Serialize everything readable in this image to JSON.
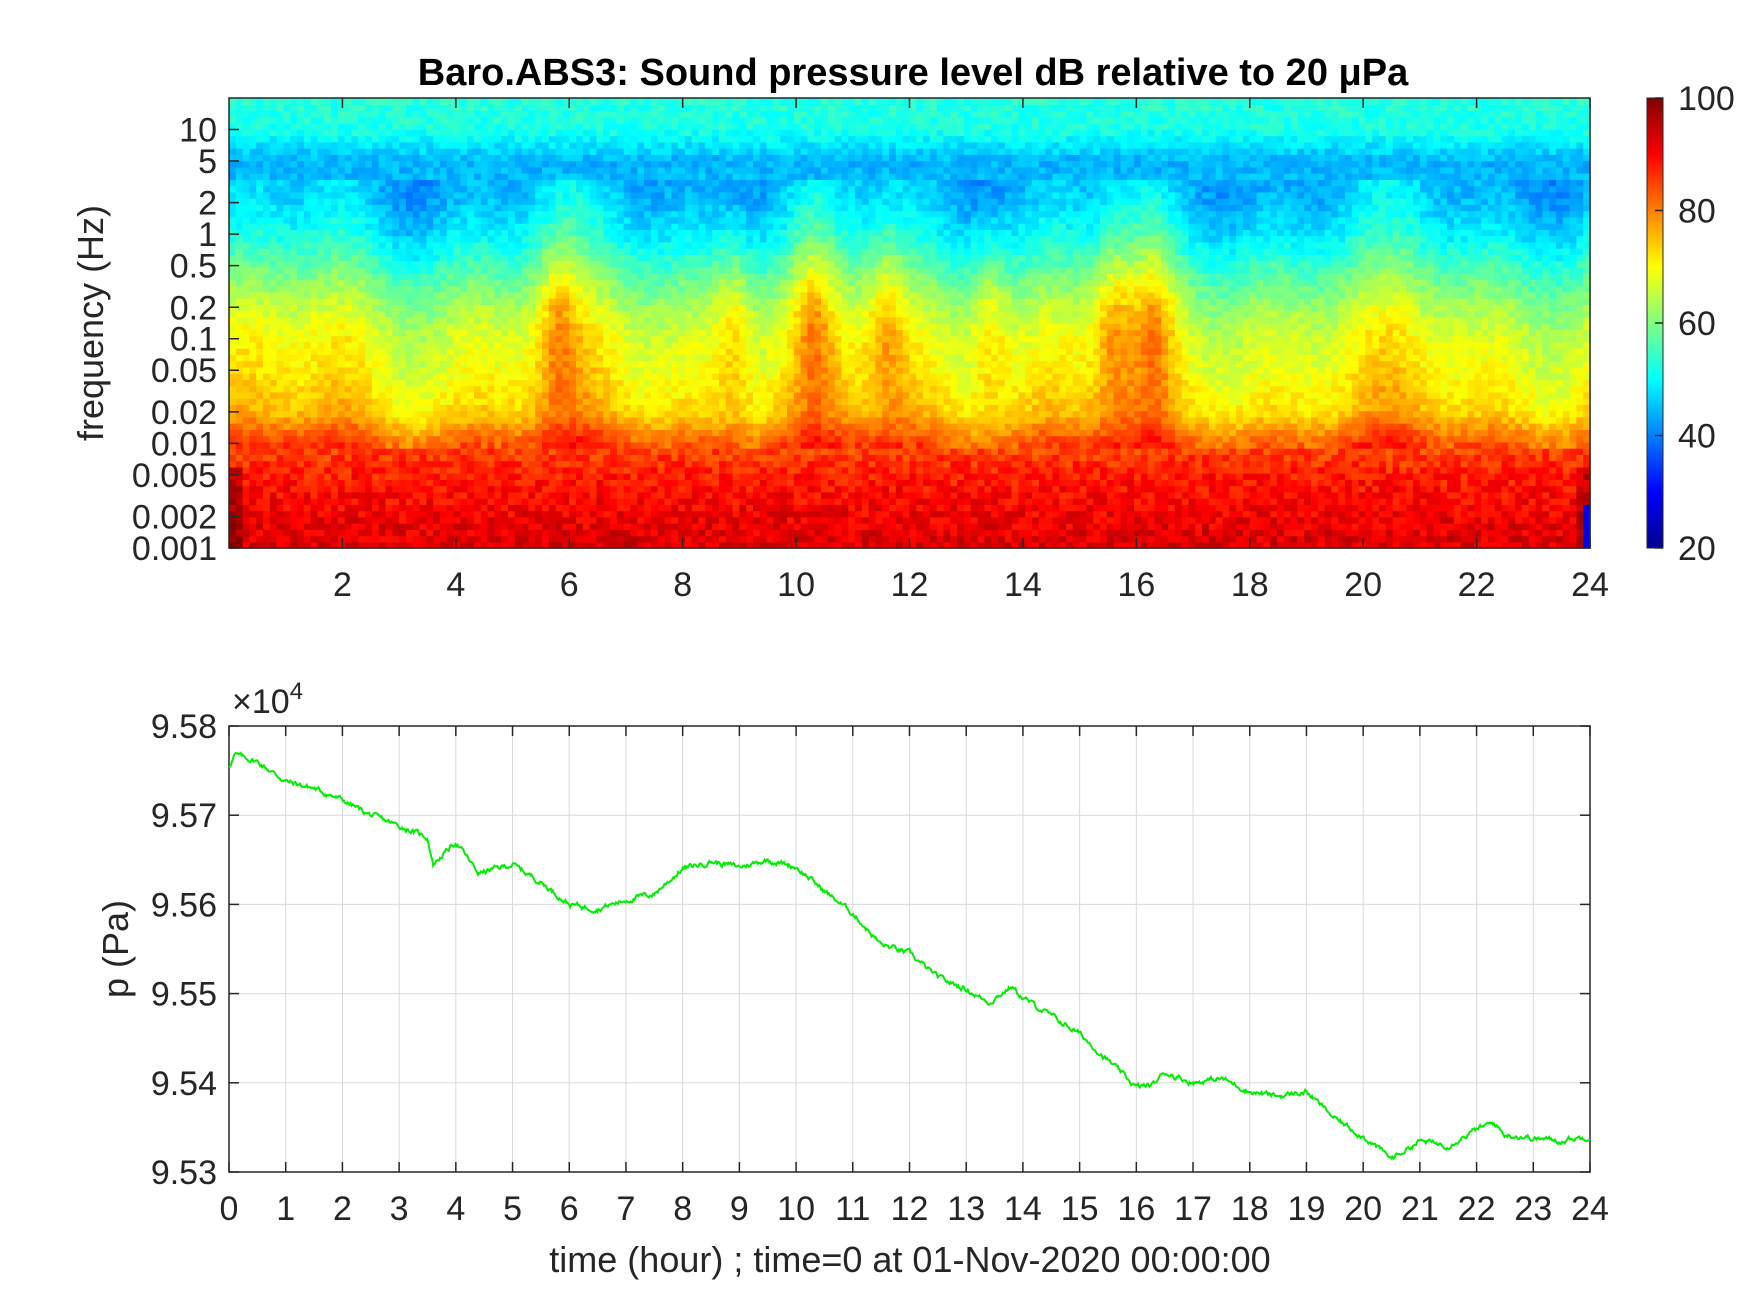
{
  "figure": {
    "title": "Baro.ABS3: Sound pressure level dB relative to 20 μPa"
  },
  "chart_data": [
    {
      "type": "heatmap",
      "title": "Baro.ABS3: Sound pressure level dB relative to 20 μPa",
      "ylabel": "frequency (Hz)",
      "xlabel": "",
      "xlim": [
        0,
        24
      ],
      "ylim": [
        0.001,
        20
      ],
      "yscale": "log",
      "xticks": [
        2,
        4,
        6,
        8,
        10,
        12,
        14,
        16,
        18,
        20,
        22,
        24
      ],
      "xtick_labels": [
        "2",
        "4",
        "6",
        "8",
        "10",
        "12",
        "14",
        "16",
        "18",
        "20",
        "22",
        "24"
      ],
      "yticks": [
        0.001,
        0.002,
        0.005,
        0.01,
        0.02,
        0.05,
        0.1,
        0.2,
        0.5,
        1,
        2,
        5,
        10
      ],
      "ytick_labels": [
        "0.001",
        "0.002",
        "0.005",
        "0.01",
        "0.02",
        "0.05",
        "0.1",
        "0.2",
        "0.5",
        "1",
        "2",
        "5",
        "10"
      ],
      "colormap": "jet",
      "colorbar": {
        "clim": [
          20,
          100
        ],
        "ticks": [
          20,
          40,
          60,
          80,
          100
        ],
        "tick_labels": [
          "20",
          "40",
          "60",
          "80",
          "100"
        ]
      },
      "z_profile_by_frequency": {
        "frequency": [
          0.001,
          0.002,
          0.005,
          0.01,
          0.02,
          0.05,
          0.1,
          0.2,
          0.5,
          1,
          2,
          5,
          10,
          20
        ],
        "level_db": [
          93,
          91,
          88,
          84,
          74,
          70,
          68,
          64,
          56,
          50,
          46,
          44,
          52,
          53
        ]
      },
      "high_activity_hours": [
        5.8,
        8.9,
        10.3,
        11.6,
        13.4,
        15.6,
        16.3
      ]
    },
    {
      "type": "line",
      "xlabel": "time (hour) ; time=0 at 01-Nov-2020 00:00:00",
      "ylabel": "p (Pa)",
      "y_multiplier": "×10",
      "y_multiplier_exp": "4",
      "xlim": [
        0,
        24
      ],
      "ylim": [
        9.53,
        9.58
      ],
      "xticks": [
        0,
        1,
        2,
        3,
        4,
        5,
        6,
        7,
        8,
        9,
        10,
        11,
        12,
        13,
        14,
        15,
        16,
        17,
        18,
        19,
        20,
        21,
        22,
        23,
        24
      ],
      "xtick_labels": [
        "0",
        "1",
        "2",
        "3",
        "4",
        "5",
        "6",
        "7",
        "8",
        "9",
        "10",
        "11",
        "12",
        "13",
        "14",
        "15",
        "16",
        "17",
        "18",
        "19",
        "20",
        "21",
        "22",
        "23",
        "24"
      ],
      "yticks": [
        9.53,
        9.54,
        9.55,
        9.56,
        9.57,
        9.58
      ],
      "ytick_labels": [
        "9.53",
        "9.54",
        "9.55",
        "9.56",
        "9.57",
        "9.58"
      ],
      "grid": true,
      "color": "#00ee00",
      "series": [
        {
          "x": [
            0,
            0.1,
            0.5,
            1,
            1.5,
            2,
            2.5,
            3,
            3.5,
            3.6,
            4,
            4.4,
            5,
            5.5,
            6,
            6.5,
            7,
            7.5,
            8,
            8.5,
            9,
            9.5,
            10,
            10.5,
            11,
            11.5,
            12,
            12.5,
            13,
            13.4,
            13.8,
            14,
            14.5,
            15,
            15.5,
            16,
            16.3,
            16.5,
            17,
            17.5,
            18,
            18.5,
            19,
            19.5,
            20,
            20.5,
            21,
            21.5,
            22,
            22.3,
            22.5,
            23,
            23.5,
            24
          ],
          "y": [
            9.5755,
            9.5768,
            9.576,
            9.5738,
            9.573,
            9.5717,
            9.57,
            9.5688,
            9.5675,
            9.5645,
            9.567,
            9.5635,
            9.5645,
            9.5625,
            9.56,
            9.5595,
            9.5605,
            9.5612,
            9.564,
            9.5648,
            9.5642,
            9.565,
            9.5642,
            9.5615,
            9.559,
            9.5555,
            9.5545,
            9.5518,
            9.5505,
            9.549,
            9.5508,
            9.5495,
            9.5475,
            9.5455,
            9.5425,
            9.5395,
            9.5398,
            9.5412,
            9.54,
            9.5405,
            9.539,
            9.5385,
            9.539,
            9.536,
            9.534,
            9.5315,
            9.5335,
            9.533,
            9.5348,
            9.5355,
            9.5342,
            9.5338,
            9.5335,
            9.534
          ]
        }
      ]
    }
  ]
}
